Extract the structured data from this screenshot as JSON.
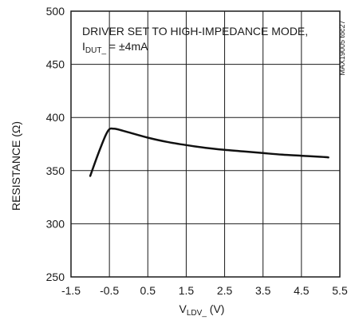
{
  "chart_data": {
    "type": "line",
    "title": "",
    "annotation_line1": "DRIVER SET TO HIGH-IMPEDANCE MODE,",
    "annotation_line2_prefix": "I",
    "annotation_line2_sub": "DUT_",
    "annotation_line2_suffix": " = ±4mA",
    "figure_code": "MAX19005 toc27",
    "xlabel_main": "V",
    "xlabel_sub": "LDV_",
    "xlabel_suffix": " (V)",
    "ylabel": "RESISTANCE (Ω)",
    "xlim": [
      -1.5,
      5.5
    ],
    "ylim": [
      250,
      500
    ],
    "xticks": [
      "-1.5",
      "-0.5",
      "0.5",
      "1.5",
      "2.5",
      "3.5",
      "4.5",
      "5.5"
    ],
    "yticks": [
      "250",
      "300",
      "350",
      "400",
      "450",
      "500"
    ],
    "grid": true,
    "series": [
      {
        "x": [
          -1.0,
          -0.8,
          -0.6,
          -0.5,
          -0.4,
          -0.3,
          0.0,
          0.5,
          1.0,
          1.5,
          2.0,
          2.5,
          3.0,
          3.5,
          4.0,
          4.5,
          5.0,
          5.2
        ],
        "y": [
          345,
          365,
          383,
          389,
          389.5,
          389,
          386,
          381,
          377,
          374,
          371.5,
          369.5,
          368,
          366.5,
          365,
          364,
          363,
          362.5
        ]
      }
    ]
  }
}
